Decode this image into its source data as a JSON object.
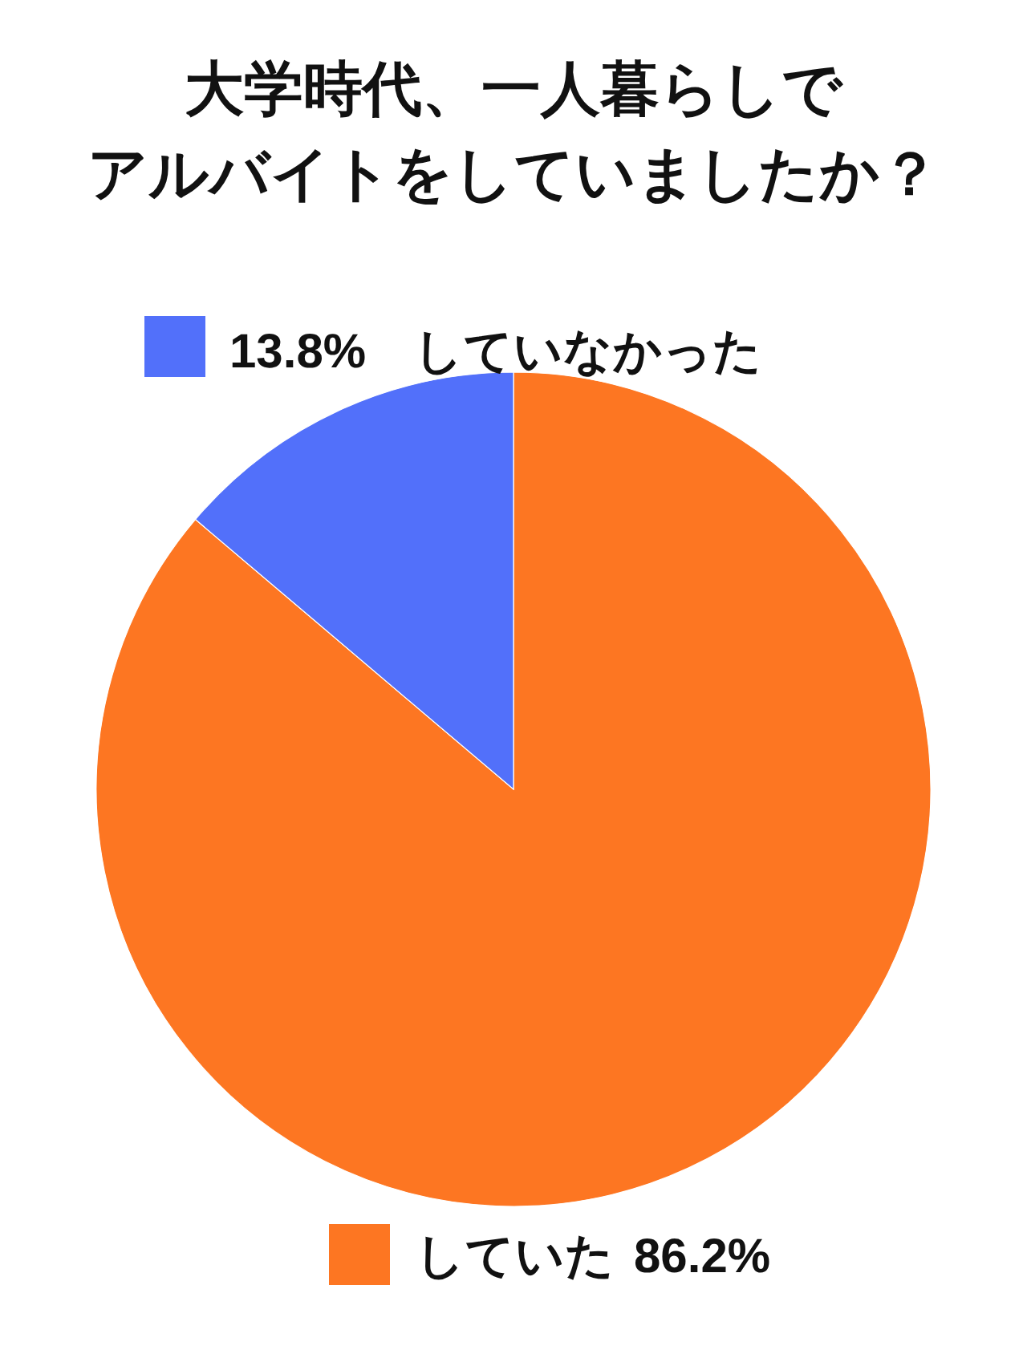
{
  "chart_data": {
    "type": "pie",
    "title": "大学時代、一人暮らしでアルバイトをしていましたか？",
    "categories": [
      "していた",
      "していなかった"
    ],
    "values": [
      86.2,
      13.8
    ],
    "colors": [
      "#fd7622",
      "#5270fa"
    ],
    "value_labels": [
      "86.2%",
      "13.8%"
    ]
  }
}
